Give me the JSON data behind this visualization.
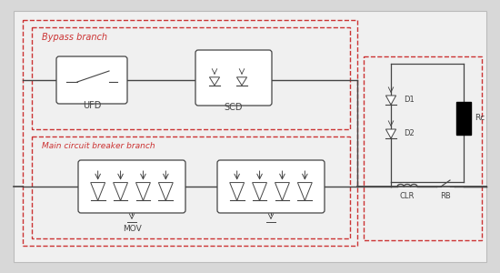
{
  "bg_color": "#d8d8d8",
  "diagram_bg": "#f0f0f0",
  "dashed_color": "#cc3333",
  "line_color": "#444444",
  "bypass_label": "Bypass branch",
  "main_label": "Main circuit breaker branch",
  "ufd_label": "UFD",
  "scd_label": "SCD",
  "mov_label": "MOV",
  "clr_label": "CLR",
  "rb_label": "RB",
  "d1_label": "D1",
  "d2_label": "D2",
  "r_label": "Rc"
}
